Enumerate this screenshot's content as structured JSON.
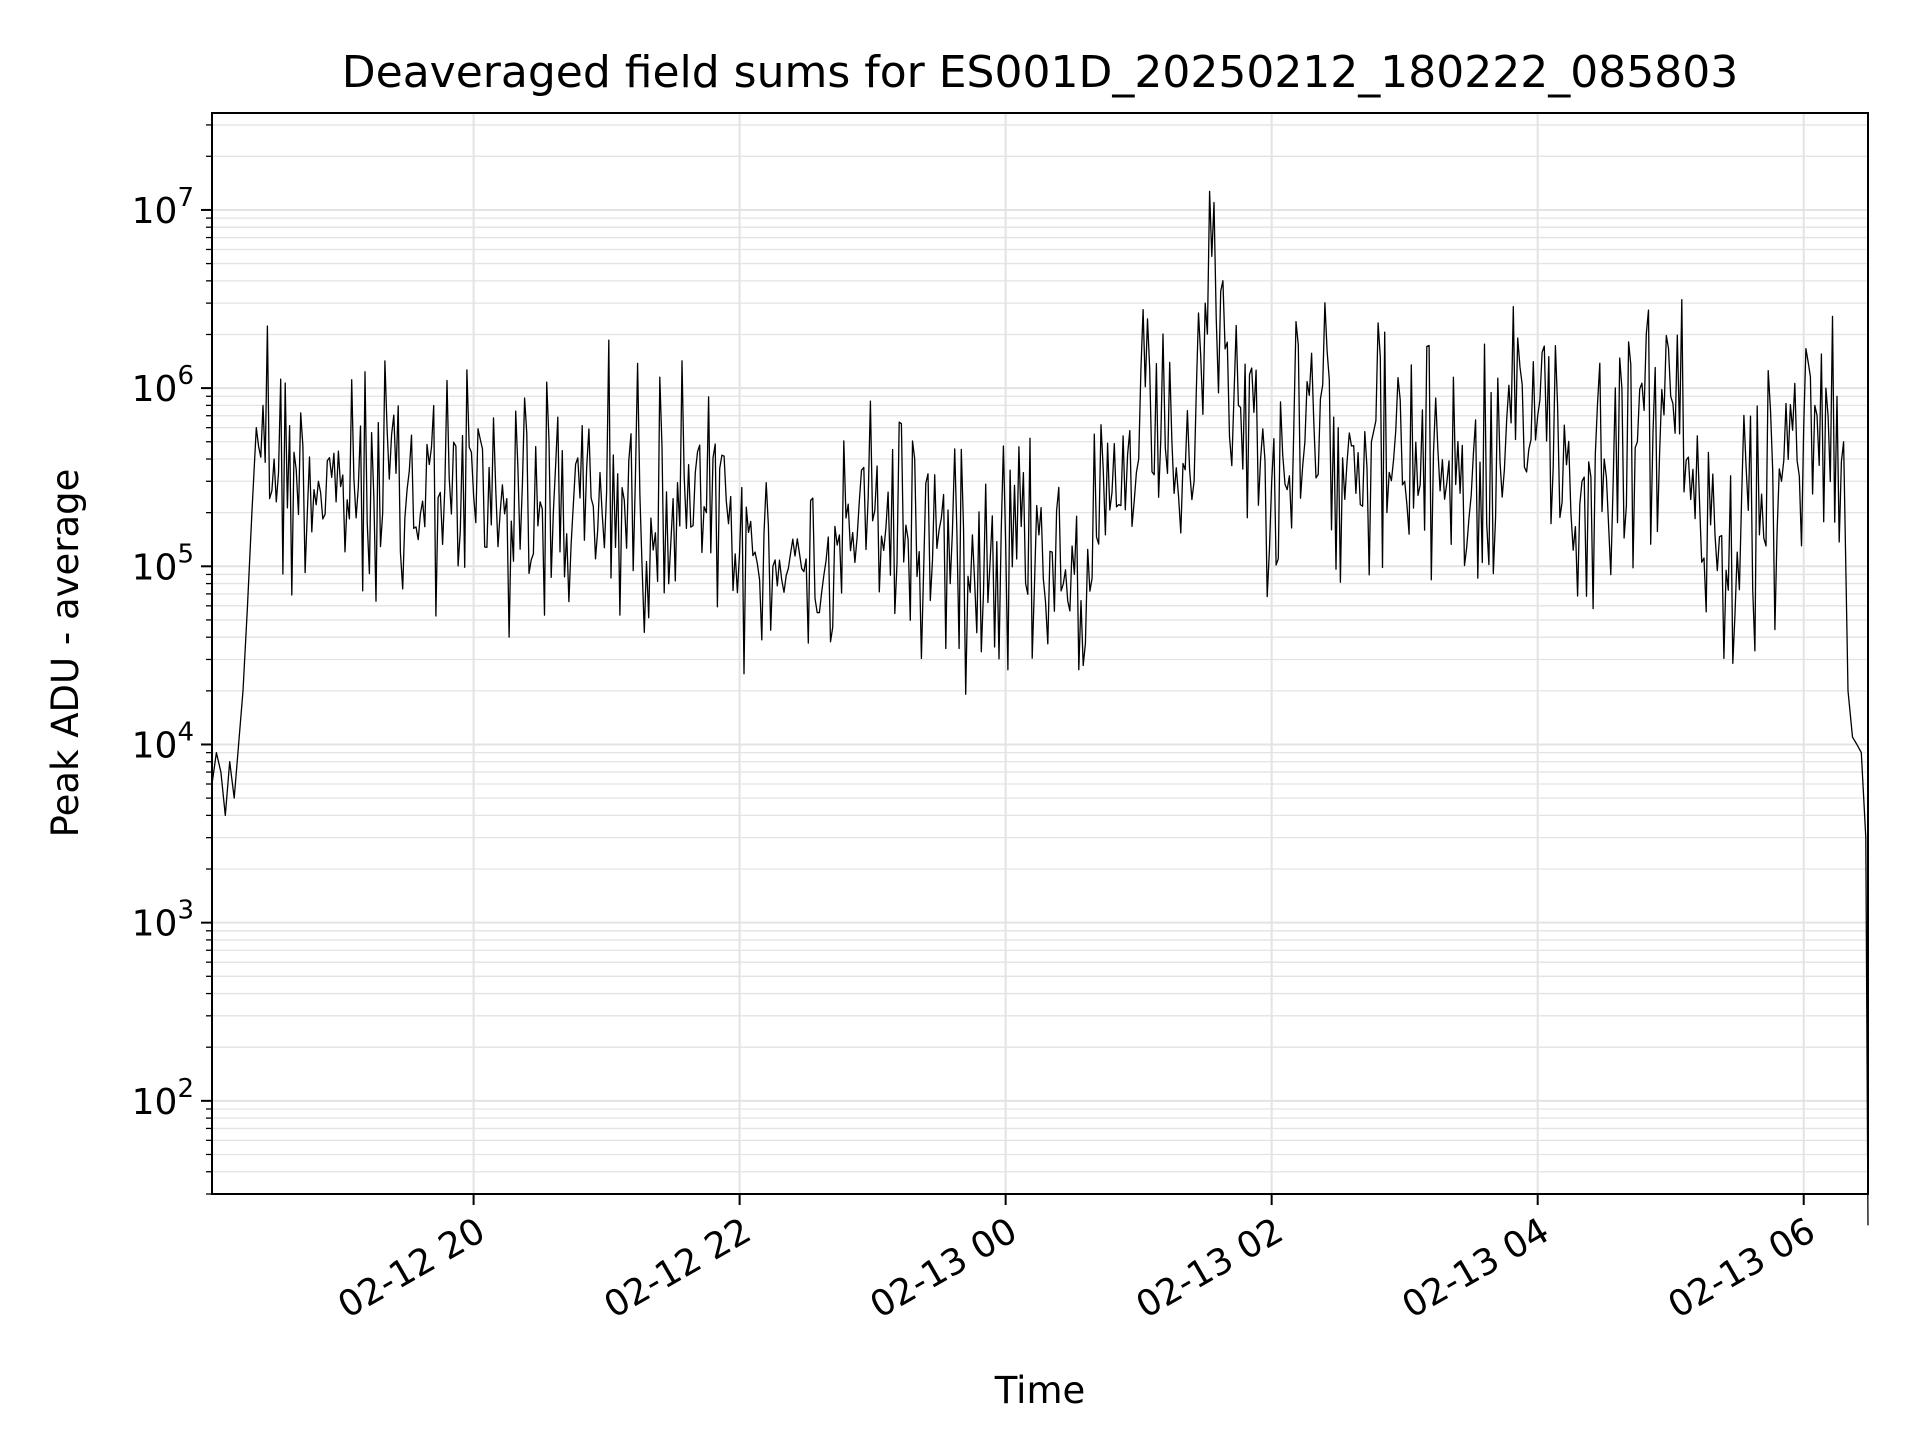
{
  "chart_data": {
    "type": "line",
    "title": "Deaveraged field sums for ES001D_20250212_180222_085803",
    "xlabel": "Time",
    "ylabel": "Peak ADU - average",
    "yscale": "log",
    "ylim": [
      30,
      35000000
    ],
    "xlim": [
      "2025-02-12 18:02",
      "2025-02-13 06:29"
    ],
    "grid": true,
    "line_color": "#000000",
    "grid_color": "#e3e3e3",
    "x_ticks": [
      {
        "value": "2025-02-12 20:00",
        "label": "02-12 20"
      },
      {
        "value": "2025-02-12 22:00",
        "label": "02-12 22"
      },
      {
        "value": "2025-02-13 00:00",
        "label": "02-13 00"
      },
      {
        "value": "2025-02-13 02:00",
        "label": "02-13 02"
      },
      {
        "value": "2025-02-13 04:00",
        "label": "02-13 04"
      },
      {
        "value": "2025-02-13 06:00",
        "label": "02-13 06"
      }
    ],
    "y_ticks": [
      {
        "value": 100,
        "base": "10",
        "exp": "2"
      },
      {
        "value": 1000,
        "base": "10",
        "exp": "3"
      },
      {
        "value": 10000,
        "base": "10",
        "exp": "4"
      },
      {
        "value": 100000,
        "base": "10",
        "exp": "5"
      },
      {
        "value": 1000000,
        "base": "10",
        "exp": "6"
      },
      {
        "value": 10000000,
        "base": "10",
        "exp": "7"
      }
    ],
    "series": [
      {
        "x": [
          "2025-02-12 18:02",
          "2025-02-12 18:04",
          "2025-02-12 18:06",
          "2025-02-12 18:08",
          "2025-02-12 18:10",
          "2025-02-12 18:12",
          "2025-02-12 18:14",
          "2025-02-12 18:16",
          "2025-02-12 18:18",
          "2025-02-12 18:20",
          "2025-02-12 18:22",
          "2025-02-12 18:25",
          "2025-02-12 18:30",
          "2025-02-12 18:40",
          "2025-02-12 18:50",
          "2025-02-12 19:00",
          "2025-02-12 19:15",
          "2025-02-12 19:30",
          "2025-02-12 19:45",
          "2025-02-12 20:00",
          "2025-02-12 20:15",
          "2025-02-12 20:30",
          "2025-02-12 20:45",
          "2025-02-12 21:00",
          "2025-02-12 21:15",
          "2025-02-12 21:30",
          "2025-02-12 21:45",
          "2025-02-12 22:00",
          "2025-02-12 22:15",
          "2025-02-12 22:30",
          "2025-02-12 22:45",
          "2025-02-12 23:00",
          "2025-02-12 23:15",
          "2025-02-12 23:30",
          "2025-02-12 23:45",
          "2025-02-13 00:00",
          "2025-02-13 00:15",
          "2025-02-13 00:30",
          "2025-02-13 00:45",
          "2025-02-13 01:00",
          "2025-02-13 01:15",
          "2025-02-13 01:25",
          "2025-02-13 01:30",
          "2025-02-13 01:35",
          "2025-02-13 01:45",
          "2025-02-13 01:55",
          "2025-02-13 02:00",
          "2025-02-13 02:15",
          "2025-02-13 02:30",
          "2025-02-13 02:45",
          "2025-02-13 03:00",
          "2025-02-13 03:15",
          "2025-02-13 03:30",
          "2025-02-13 03:45",
          "2025-02-13 04:00",
          "2025-02-13 04:05",
          "2025-02-13 04:15",
          "2025-02-13 04:30",
          "2025-02-13 04:45",
          "2025-02-13 05:00",
          "2025-02-13 05:10",
          "2025-02-13 05:20",
          "2025-02-13 05:30",
          "2025-02-13 05:40",
          "2025-02-13 05:50",
          "2025-02-13 06:00",
          "2025-02-13 06:05",
          "2025-02-13 06:10",
          "2025-02-13 06:15",
          "2025-02-13 06:18",
          "2025-02-13 06:20",
          "2025-02-13 06:22",
          "2025-02-13 06:24",
          "2025-02-13 06:26",
          "2025-02-13 06:28",
          "2025-02-13 06:29"
        ],
        "y": [
          6000,
          9000,
          7000,
          4000,
          8000,
          5000,
          10000,
          20000,
          60000,
          200000,
          600000,
          800000,
          400000,
          350000,
          300000,
          280000,
          250000,
          270000,
          260000,
          250000,
          240000,
          230000,
          220000,
          260000,
          250000,
          240000,
          200000,
          120000,
          100000,
          110000,
          150000,
          180000,
          170000,
          160000,
          150000,
          140000,
          150000,
          130000,
          150000,
          400000,
          500000,
          300000,
          3000000,
          2500000,
          800000,
          400000,
          300000,
          500000,
          600000,
          500000,
          300000,
          450000,
          250000,
          350000,
          700000,
          1500000,
          200000,
          400000,
          500000,
          900000,
          350000,
          150000,
          120000,
          150000,
          300000,
          600000,
          800000,
          1000000,
          900000,
          500000,
          20000,
          11000,
          10000,
          9000,
          3000,
          20
        ]
      }
    ]
  }
}
